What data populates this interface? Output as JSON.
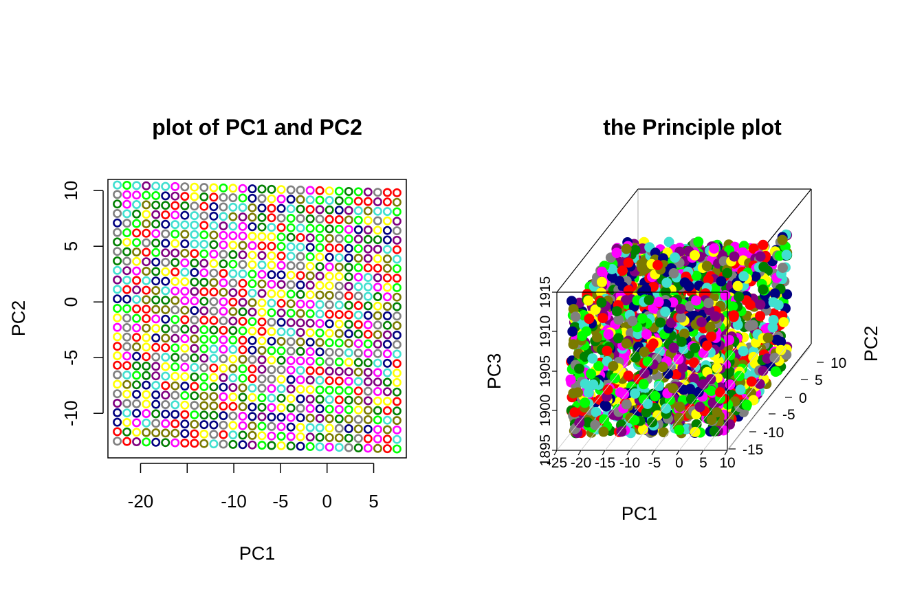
{
  "chart_data": [
    {
      "type": "scatter",
      "title": "plot of PC1 and PC2",
      "xlabel": "PC1",
      "ylabel": "PC2",
      "xlim": [
        -23.5,
        8.5
      ],
      "ylim": [
        -14.0,
        11.0
      ],
      "x_ticks": [
        -25,
        -20,
        -15,
        -10,
        -5,
        0,
        5
      ],
      "x_tick_labels": [
        "",
        "-20",
        "",
        "-10",
        "-5",
        "0",
        "5"
      ],
      "y_ticks": [
        -10,
        -5,
        0,
        5,
        10
      ],
      "y_tick_labels": [
        "-10",
        "-5",
        "0",
        "5",
        "10"
      ],
      "grid": false,
      "marker": "open-circle",
      "point_grid": {
        "columns": 30,
        "rows": 28,
        "top_left": [
          -22.5,
          10.5
        ],
        "top_right": [
          7.5,
          9.8
        ],
        "bottom_left": [
          -22.5,
          -12.5
        ],
        "bottom_right": [
          7.5,
          -13.2
        ]
      },
      "palette": [
        "#7a7a00",
        "#ff00ff",
        "#008000",
        "#00ff00",
        "#ff0000",
        "#000080",
        "#40e0d0",
        "#ffff00",
        "#808080",
        "#800080"
      ]
    },
    {
      "type": "scatter",
      "subtype": "3d",
      "title": "the Principle plot",
      "xlabel": "PC1",
      "ylabel": "PC2",
      "zlabel": "PC3",
      "x_ticks": [
        -25,
        -20,
        -15,
        -10,
        -5,
        0,
        5,
        10
      ],
      "x_tick_labels": [
        "-25",
        "-20",
        "-15",
        "-10",
        "-5",
        "0",
        "5",
        "10"
      ],
      "y_ticks": [
        -15,
        -10,
        -5,
        0,
        5,
        10
      ],
      "y_tick_labels": [
        "-15",
        "-10",
        "-5",
        "0",
        "5",
        "10"
      ],
      "z_ticks": [
        1895,
        1900,
        1905,
        1910,
        1915
      ],
      "z_tick_labels": [
        "1895",
        "1900",
        "1905",
        "1910",
        "1915"
      ],
      "marker": "filled-circle",
      "palette": [
        "#7a7a00",
        "#ff00ff",
        "#008000",
        "#00ff00",
        "#ff0000",
        "#000080",
        "#40e0d0",
        "#ffff00",
        "#808080",
        "#800080"
      ]
    }
  ]
}
